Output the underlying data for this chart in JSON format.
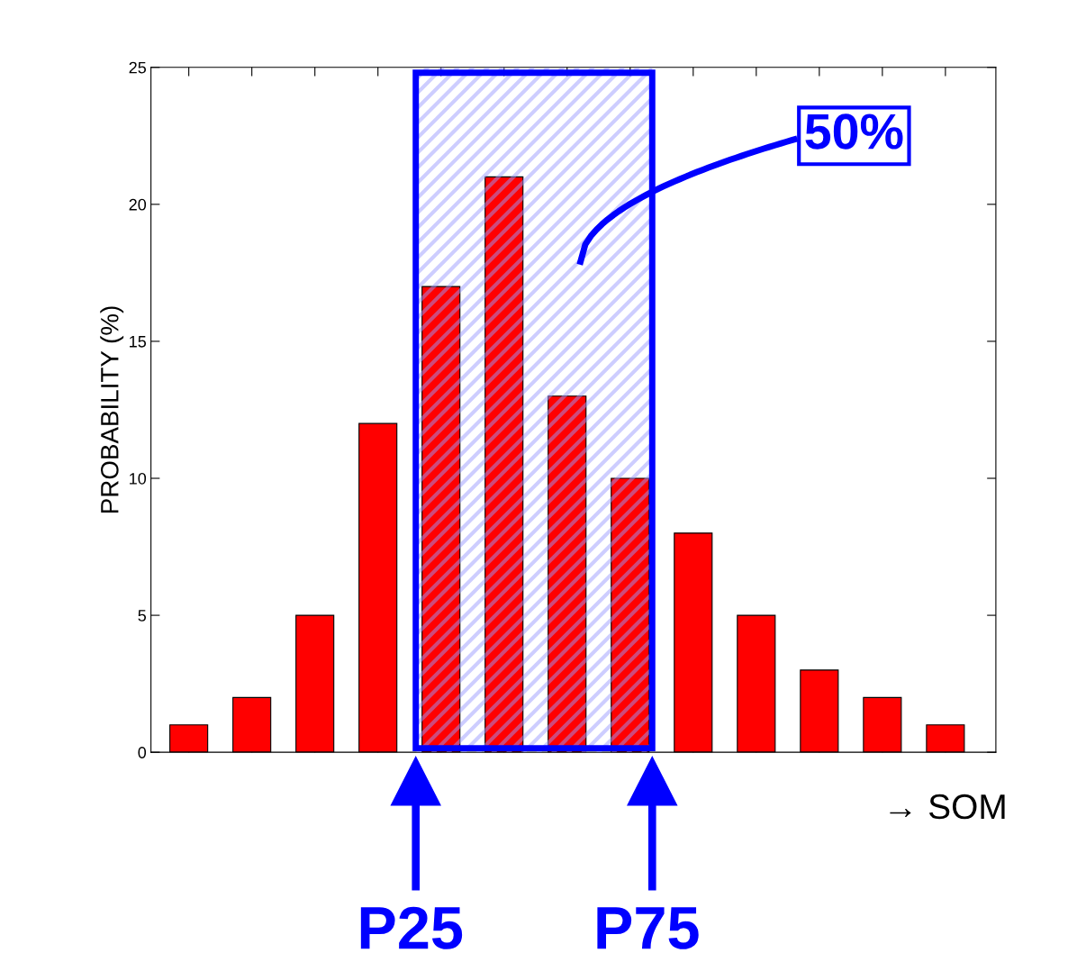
{
  "chart_data": {
    "type": "bar",
    "categories": [
      null,
      null,
      null,
      null,
      null,
      null,
      null,
      null,
      null,
      null,
      null,
      null,
      null
    ],
    "values": [
      1,
      2,
      5,
      12,
      17,
      21,
      13,
      10,
      8,
      5,
      3,
      2,
      1
    ],
    "color": "#ff0000",
    "ylabel": "PROBABILITY (%)",
    "xlabel": "→ SOM",
    "ylim": [
      0,
      25
    ],
    "yticks": [
      0,
      5,
      10,
      15,
      20,
      25
    ],
    "grid": false,
    "tick_labels": "y",
    "annotations": [
      "50%",
      "P25",
      "P75"
    ]
  }
}
